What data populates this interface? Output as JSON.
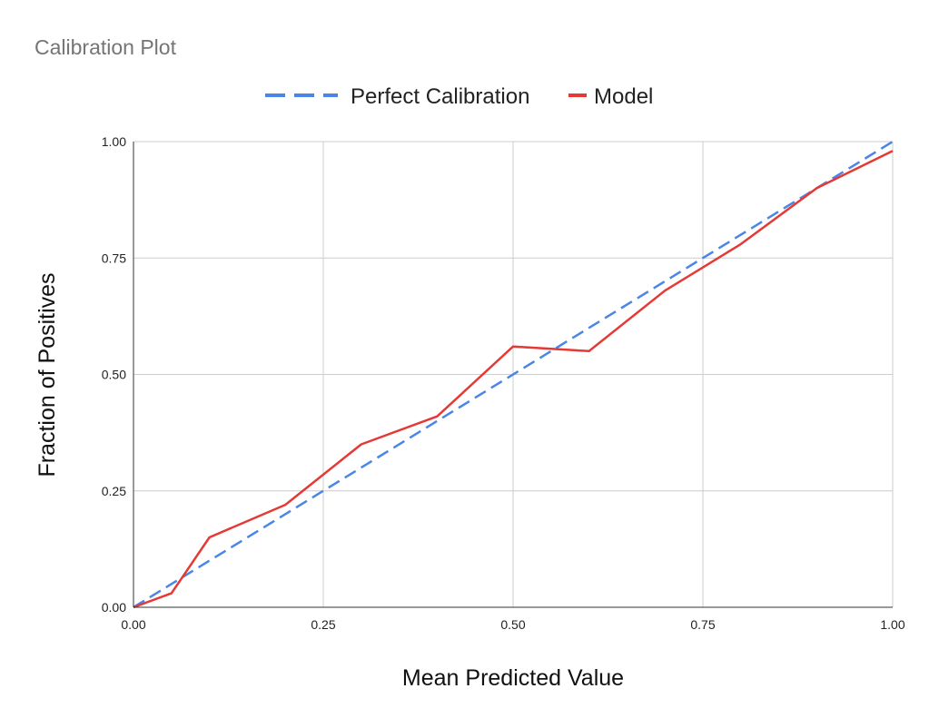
{
  "chart_data": {
    "type": "line",
    "title": "Calibration Plot",
    "xlabel": "Mean Predicted Value",
    "ylabel": "Fraction of Positives",
    "xlim": [
      0,
      1
    ],
    "ylim": [
      0,
      1
    ],
    "x_ticks": [
      "0.00",
      "0.25",
      "0.50",
      "0.75",
      "1.00"
    ],
    "y_ticks": [
      "0.00",
      "0.25",
      "0.50",
      "0.75",
      "1.00"
    ],
    "grid": true,
    "legend_position": "top",
    "series": [
      {
        "name": "Perfect Calibration",
        "color": "#4a86e8",
        "style": "dashed",
        "x": [
          0,
          1
        ],
        "y": [
          0,
          1
        ]
      },
      {
        "name": "Model",
        "color": "#e53935",
        "style": "solid",
        "x": [
          0.0,
          0.05,
          0.1,
          0.2,
          0.3,
          0.4,
          0.5,
          0.6,
          0.7,
          0.8,
          0.9,
          1.0
        ],
        "y": [
          0.0,
          0.03,
          0.15,
          0.22,
          0.35,
          0.41,
          0.56,
          0.55,
          0.68,
          0.78,
          0.9,
          0.98
        ]
      }
    ]
  }
}
